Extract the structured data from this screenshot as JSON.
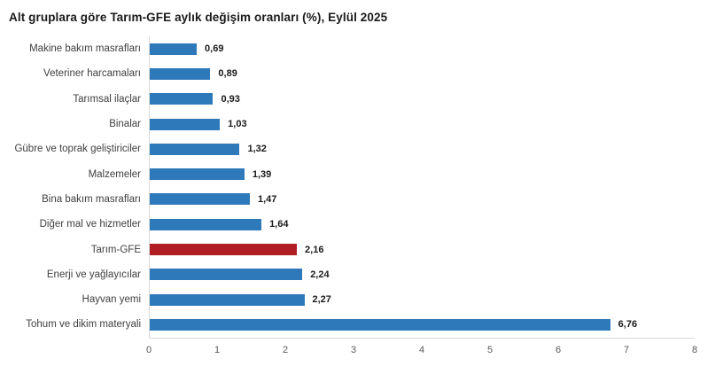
{
  "title": "Alt gruplara göre Tarım-GFE aylık değişim oranları (%), Eylül 2025",
  "colors": {
    "bar": "#2e79b9",
    "highlight_bar": "#b01e24",
    "axis_line": "#d9d9d9",
    "title_text": "#1a1a1a",
    "category_text": "#404040",
    "value_text": "#1a1a1a",
    "tick_text": "#595959"
  },
  "chart_data": {
    "type": "bar",
    "orientation": "horizontal",
    "title": "Alt gruplara göre Tarım-GFE aylık değişim oranları (%), Eylül 2025",
    "categories": [
      "Makine bakım masrafları",
      "Veteriner harcamaları",
      "Tarımsal ilaçlar",
      "Binalar",
      "Gübre ve toprak geliştiriciler",
      "Malzemeler",
      "Bina bakım masrafları",
      "Diğer mal ve hizmetler",
      "Tarım-GFE",
      "Enerji ve yağlayıcılar",
      "Hayvan yemi",
      "Tohum ve dikim materyali"
    ],
    "values": [
      0.69,
      0.89,
      0.93,
      1.03,
      1.32,
      1.39,
      1.47,
      1.64,
      2.16,
      2.24,
      2.27,
      6.76
    ],
    "value_labels": [
      "0,69",
      "0,89",
      "0,93",
      "1,03",
      "1,32",
      "1,39",
      "1,47",
      "1,64",
      "2,16",
      "2,24",
      "2,27",
      "6,76"
    ],
    "highlight_category": "Tarım-GFE",
    "highlight_index": 8,
    "xlabel": "",
    "ylabel": "",
    "xlim": [
      0,
      8
    ],
    "x_ticks": [
      "0",
      "1",
      "2",
      "3",
      "4",
      "5",
      "6",
      "7",
      "8"
    ],
    "grid": false,
    "legend": false
  }
}
